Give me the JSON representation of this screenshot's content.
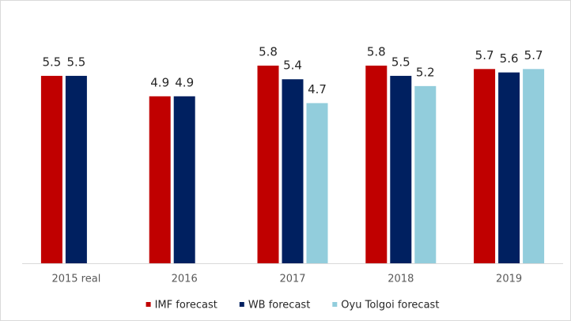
{
  "chart_data": {
    "type": "bar",
    "categories": [
      "2015 real",
      "2016",
      "2017",
      "2018",
      "2019"
    ],
    "series": [
      {
        "name": "IMF forecast",
        "color": "#c00000",
        "values": [
          5.5,
          4.9,
          5.8,
          5.8,
          5.7
        ]
      },
      {
        "name": "WB forecast",
        "color": "#002060",
        "values": [
          5.5,
          4.9,
          5.4,
          5.5,
          5.6
        ]
      },
      {
        "name": "Oyu Tolgoi forecast",
        "color": "#92cddc",
        "values": [
          null,
          null,
          4.7,
          5.2,
          5.7
        ]
      }
    ],
    "legend": "bottom"
  }
}
